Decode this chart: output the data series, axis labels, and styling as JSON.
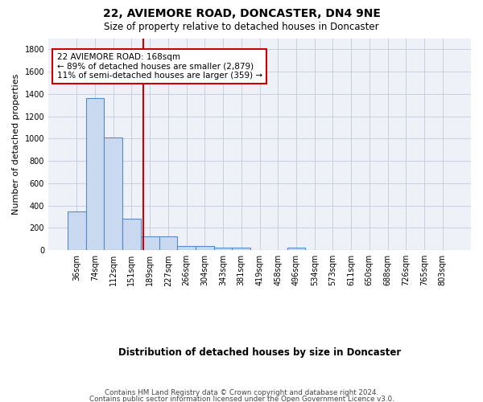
{
  "title": "22, AVIEMORE ROAD, DONCASTER, DN4 9NE",
  "subtitle": "Size of property relative to detached houses in Doncaster",
  "xlabel": "Distribution of detached houses by size in Doncaster",
  "ylabel": "Number of detached properties",
  "footer_line1": "Contains HM Land Registry data © Crown copyright and database right 2024.",
  "footer_line2": "Contains public sector information licensed under the Open Government Licence v3.0.",
  "bar_labels": [
    "36sqm",
    "74sqm",
    "112sqm",
    "151sqm",
    "189sqm",
    "227sqm",
    "266sqm",
    "304sqm",
    "343sqm",
    "381sqm",
    "419sqm",
    "458sqm",
    "496sqm",
    "534sqm",
    "573sqm",
    "611sqm",
    "650sqm",
    "688sqm",
    "726sqm",
    "765sqm",
    "803sqm"
  ],
  "bar_values": [
    350,
    1360,
    1010,
    285,
    125,
    125,
    40,
    35,
    25,
    20,
    0,
    0,
    20,
    0,
    0,
    0,
    0,
    0,
    0,
    0,
    0
  ],
  "bar_color": "#c9d9f0",
  "bar_edge_color": "#5a8ac6",
  "property_label": "22 AVIEMORE ROAD: 168sqm",
  "pct_smaller": 89,
  "n_smaller": 2879,
  "pct_larger": 11,
  "n_larger": 359,
  "vline_color": "#cc0000",
  "vline_x_index": 3.62,
  "annotation_box_color": "#cc0000",
  "ylim": [
    0,
    1900
  ],
  "yticks": [
    0,
    200,
    400,
    600,
    800,
    1000,
    1200,
    1400,
    1600,
    1800
  ],
  "grid_color": "#c8d0e0",
  "background_color": "#ffffff",
  "plot_bg_color": "#eef2f8"
}
